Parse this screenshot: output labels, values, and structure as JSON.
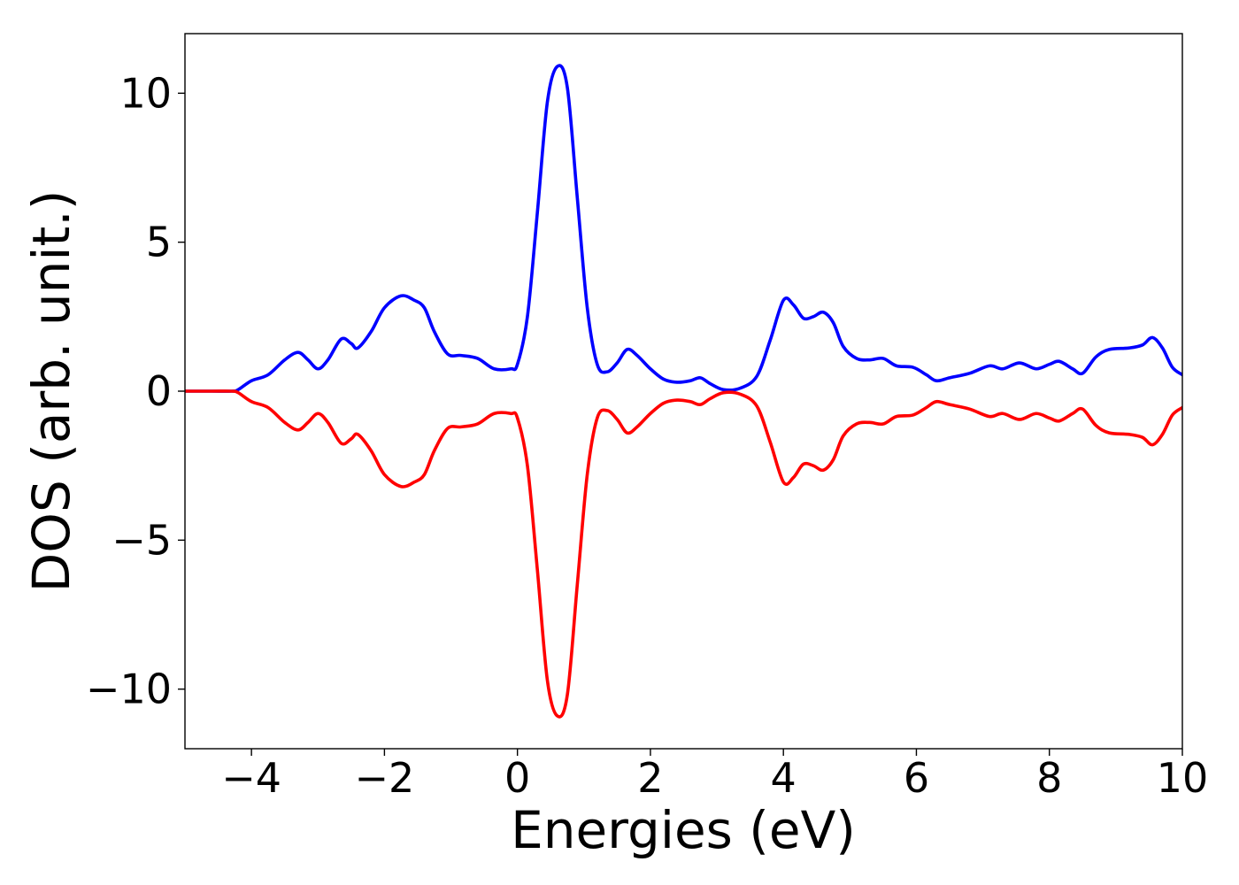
{
  "chart_data": {
    "type": "line",
    "title": "",
    "xlabel": "Energies (eV)",
    "ylabel": "DOS (arb. unit.)",
    "xlim": [
      -5,
      10
    ],
    "ylim": [
      -12,
      12
    ],
    "xticks": [
      -4,
      -2,
      0,
      2,
      4,
      6,
      8,
      10
    ],
    "xtick_labels": [
      "−4",
      "−2",
      "0",
      "2",
      "4",
      "6",
      "8",
      "10"
    ],
    "yticks": [
      -10,
      -5,
      0,
      5,
      10
    ],
    "ytick_labels": [
      "−10",
      "−5",
      "0",
      "5",
      "10"
    ],
    "grid": false,
    "legend": "none",
    "series": [
      {
        "color": "#0000ff",
        "points": [
          [
            -5.0,
            0.0
          ],
          [
            -4.6,
            0.0
          ],
          [
            -4.3,
            0.0
          ],
          [
            -4.2,
            0.05
          ],
          [
            -4.0,
            0.35
          ],
          [
            -3.75,
            0.55
          ],
          [
            -3.5,
            1.05
          ],
          [
            -3.3,
            1.3
          ],
          [
            -3.15,
            1.05
          ],
          [
            -3.0,
            0.75
          ],
          [
            -2.85,
            1.05
          ],
          [
            -2.65,
            1.75
          ],
          [
            -2.5,
            1.6
          ],
          [
            -2.4,
            1.45
          ],
          [
            -2.2,
            2.0
          ],
          [
            -2.0,
            2.8
          ],
          [
            -1.75,
            3.2
          ],
          [
            -1.55,
            3.05
          ],
          [
            -1.4,
            2.8
          ],
          [
            -1.25,
            2.0
          ],
          [
            -1.05,
            1.25
          ],
          [
            -0.85,
            1.2
          ],
          [
            -0.6,
            1.1
          ],
          [
            -0.35,
            0.75
          ],
          [
            -0.1,
            0.75
          ],
          [
            0.0,
            0.9
          ],
          [
            0.15,
            2.5
          ],
          [
            0.3,
            6.0
          ],
          [
            0.45,
            9.7
          ],
          [
            0.6,
            10.9
          ],
          [
            0.75,
            10.2
          ],
          [
            0.9,
            6.5
          ],
          [
            1.05,
            2.8
          ],
          [
            1.2,
            0.9
          ],
          [
            1.35,
            0.65
          ],
          [
            1.5,
            0.95
          ],
          [
            1.65,
            1.4
          ],
          [
            1.8,
            1.2
          ],
          [
            2.0,
            0.75
          ],
          [
            2.2,
            0.4
          ],
          [
            2.4,
            0.3
          ],
          [
            2.6,
            0.35
          ],
          [
            2.75,
            0.45
          ],
          [
            2.9,
            0.25
          ],
          [
            3.1,
            0.05
          ],
          [
            3.35,
            0.1
          ],
          [
            3.6,
            0.5
          ],
          [
            3.8,
            1.7
          ],
          [
            4.0,
            3.05
          ],
          [
            4.15,
            2.9
          ],
          [
            4.3,
            2.45
          ],
          [
            4.45,
            2.5
          ],
          [
            4.6,
            2.65
          ],
          [
            4.75,
            2.3
          ],
          [
            4.9,
            1.5
          ],
          [
            5.1,
            1.1
          ],
          [
            5.3,
            1.05
          ],
          [
            5.5,
            1.1
          ],
          [
            5.7,
            0.85
          ],
          [
            5.95,
            0.8
          ],
          [
            6.15,
            0.55
          ],
          [
            6.3,
            0.35
          ],
          [
            6.5,
            0.45
          ],
          [
            6.8,
            0.6
          ],
          [
            7.1,
            0.85
          ],
          [
            7.3,
            0.75
          ],
          [
            7.55,
            0.95
          ],
          [
            7.8,
            0.75
          ],
          [
            8.0,
            0.9
          ],
          [
            8.15,
            1.0
          ],
          [
            8.35,
            0.75
          ],
          [
            8.5,
            0.6
          ],
          [
            8.7,
            1.15
          ],
          [
            8.9,
            1.4
          ],
          [
            9.2,
            1.45
          ],
          [
            9.4,
            1.55
          ],
          [
            9.55,
            1.8
          ],
          [
            9.7,
            1.45
          ],
          [
            9.85,
            0.8
          ],
          [
            10.0,
            0.55
          ]
        ]
      },
      {
        "color": "#ff0000",
        "points": [
          [
            -5.0,
            0.0
          ],
          [
            -4.6,
            0.0
          ],
          [
            -4.3,
            0.0
          ],
          [
            -4.2,
            -0.05
          ],
          [
            -4.0,
            -0.35
          ],
          [
            -3.75,
            -0.55
          ],
          [
            -3.5,
            -1.05
          ],
          [
            -3.3,
            -1.3
          ],
          [
            -3.15,
            -1.05
          ],
          [
            -3.0,
            -0.75
          ],
          [
            -2.85,
            -1.05
          ],
          [
            -2.65,
            -1.75
          ],
          [
            -2.5,
            -1.6
          ],
          [
            -2.4,
            -1.45
          ],
          [
            -2.2,
            -2.0
          ],
          [
            -2.0,
            -2.8
          ],
          [
            -1.75,
            -3.2
          ],
          [
            -1.55,
            -3.05
          ],
          [
            -1.4,
            -2.8
          ],
          [
            -1.25,
            -2.0
          ],
          [
            -1.05,
            -1.25
          ],
          [
            -0.85,
            -1.2
          ],
          [
            -0.6,
            -1.1
          ],
          [
            -0.35,
            -0.75
          ],
          [
            -0.1,
            -0.75
          ],
          [
            0.0,
            -0.9
          ],
          [
            0.15,
            -2.5
          ],
          [
            0.3,
            -6.0
          ],
          [
            0.45,
            -9.7
          ],
          [
            0.6,
            -10.9
          ],
          [
            0.75,
            -10.2
          ],
          [
            0.9,
            -6.5
          ],
          [
            1.05,
            -2.8
          ],
          [
            1.2,
            -0.9
          ],
          [
            1.35,
            -0.65
          ],
          [
            1.5,
            -0.95
          ],
          [
            1.65,
            -1.4
          ],
          [
            1.8,
            -1.2
          ],
          [
            2.0,
            -0.75
          ],
          [
            2.2,
            -0.4
          ],
          [
            2.4,
            -0.3
          ],
          [
            2.6,
            -0.35
          ],
          [
            2.75,
            -0.45
          ],
          [
            2.9,
            -0.25
          ],
          [
            3.1,
            -0.05
          ],
          [
            3.35,
            -0.1
          ],
          [
            3.6,
            -0.5
          ],
          [
            3.8,
            -1.7
          ],
          [
            4.0,
            -3.05
          ],
          [
            4.15,
            -2.9
          ],
          [
            4.3,
            -2.45
          ],
          [
            4.45,
            -2.5
          ],
          [
            4.6,
            -2.65
          ],
          [
            4.75,
            -2.3
          ],
          [
            4.9,
            -1.5
          ],
          [
            5.1,
            -1.1
          ],
          [
            5.3,
            -1.05
          ],
          [
            5.5,
            -1.1
          ],
          [
            5.7,
            -0.85
          ],
          [
            5.95,
            -0.8
          ],
          [
            6.15,
            -0.55
          ],
          [
            6.3,
            -0.35
          ],
          [
            6.5,
            -0.45
          ],
          [
            6.8,
            -0.6
          ],
          [
            7.1,
            -0.85
          ],
          [
            7.3,
            -0.75
          ],
          [
            7.55,
            -0.95
          ],
          [
            7.8,
            -0.75
          ],
          [
            8.0,
            -0.9
          ],
          [
            8.15,
            -1.0
          ],
          [
            8.35,
            -0.75
          ],
          [
            8.5,
            -0.6
          ],
          [
            8.7,
            -1.15
          ],
          [
            8.9,
            -1.4
          ],
          [
            9.2,
            -1.45
          ],
          [
            9.4,
            -1.55
          ],
          [
            9.55,
            -1.8
          ],
          [
            9.7,
            -1.45
          ],
          [
            9.85,
            -0.8
          ],
          [
            10.0,
            -0.55
          ]
        ]
      }
    ]
  }
}
